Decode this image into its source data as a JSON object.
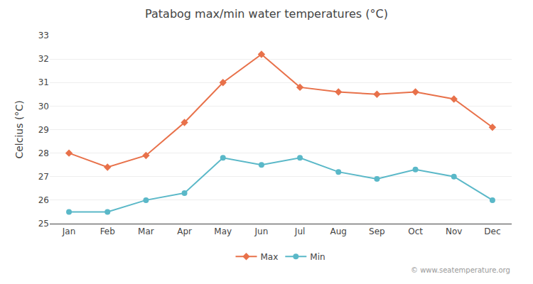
{
  "chart_data": {
    "type": "line",
    "title": "Patabog max/min water temperatures (°C)",
    "ylabel": "Celcius (°C)",
    "categories": [
      "Jan",
      "Feb",
      "Mar",
      "Apr",
      "May",
      "Jun",
      "Jul",
      "Aug",
      "Sep",
      "Oct",
      "Nov",
      "Dec"
    ],
    "series": [
      {
        "name": "Max",
        "color": "#e8714a",
        "marker": "diamond",
        "values": [
          28.0,
          27.4,
          27.9,
          29.3,
          31.0,
          32.2,
          30.8,
          30.6,
          30.5,
          30.6,
          30.3,
          29.1
        ]
      },
      {
        "name": "Min",
        "color": "#5ab8c8",
        "marker": "circle",
        "values": [
          25.5,
          25.5,
          26.0,
          26.3,
          27.8,
          27.5,
          27.8,
          27.2,
          26.9,
          27.3,
          27.0,
          26.0
        ]
      }
    ],
    "ylim": [
      25,
      33
    ],
    "yticks": [
      25,
      26,
      27,
      28,
      29,
      30,
      31,
      32,
      33
    ],
    "grid": true,
    "legend": "bottom",
    "annotations": [
      "© www.seatemperature.org"
    ]
  }
}
